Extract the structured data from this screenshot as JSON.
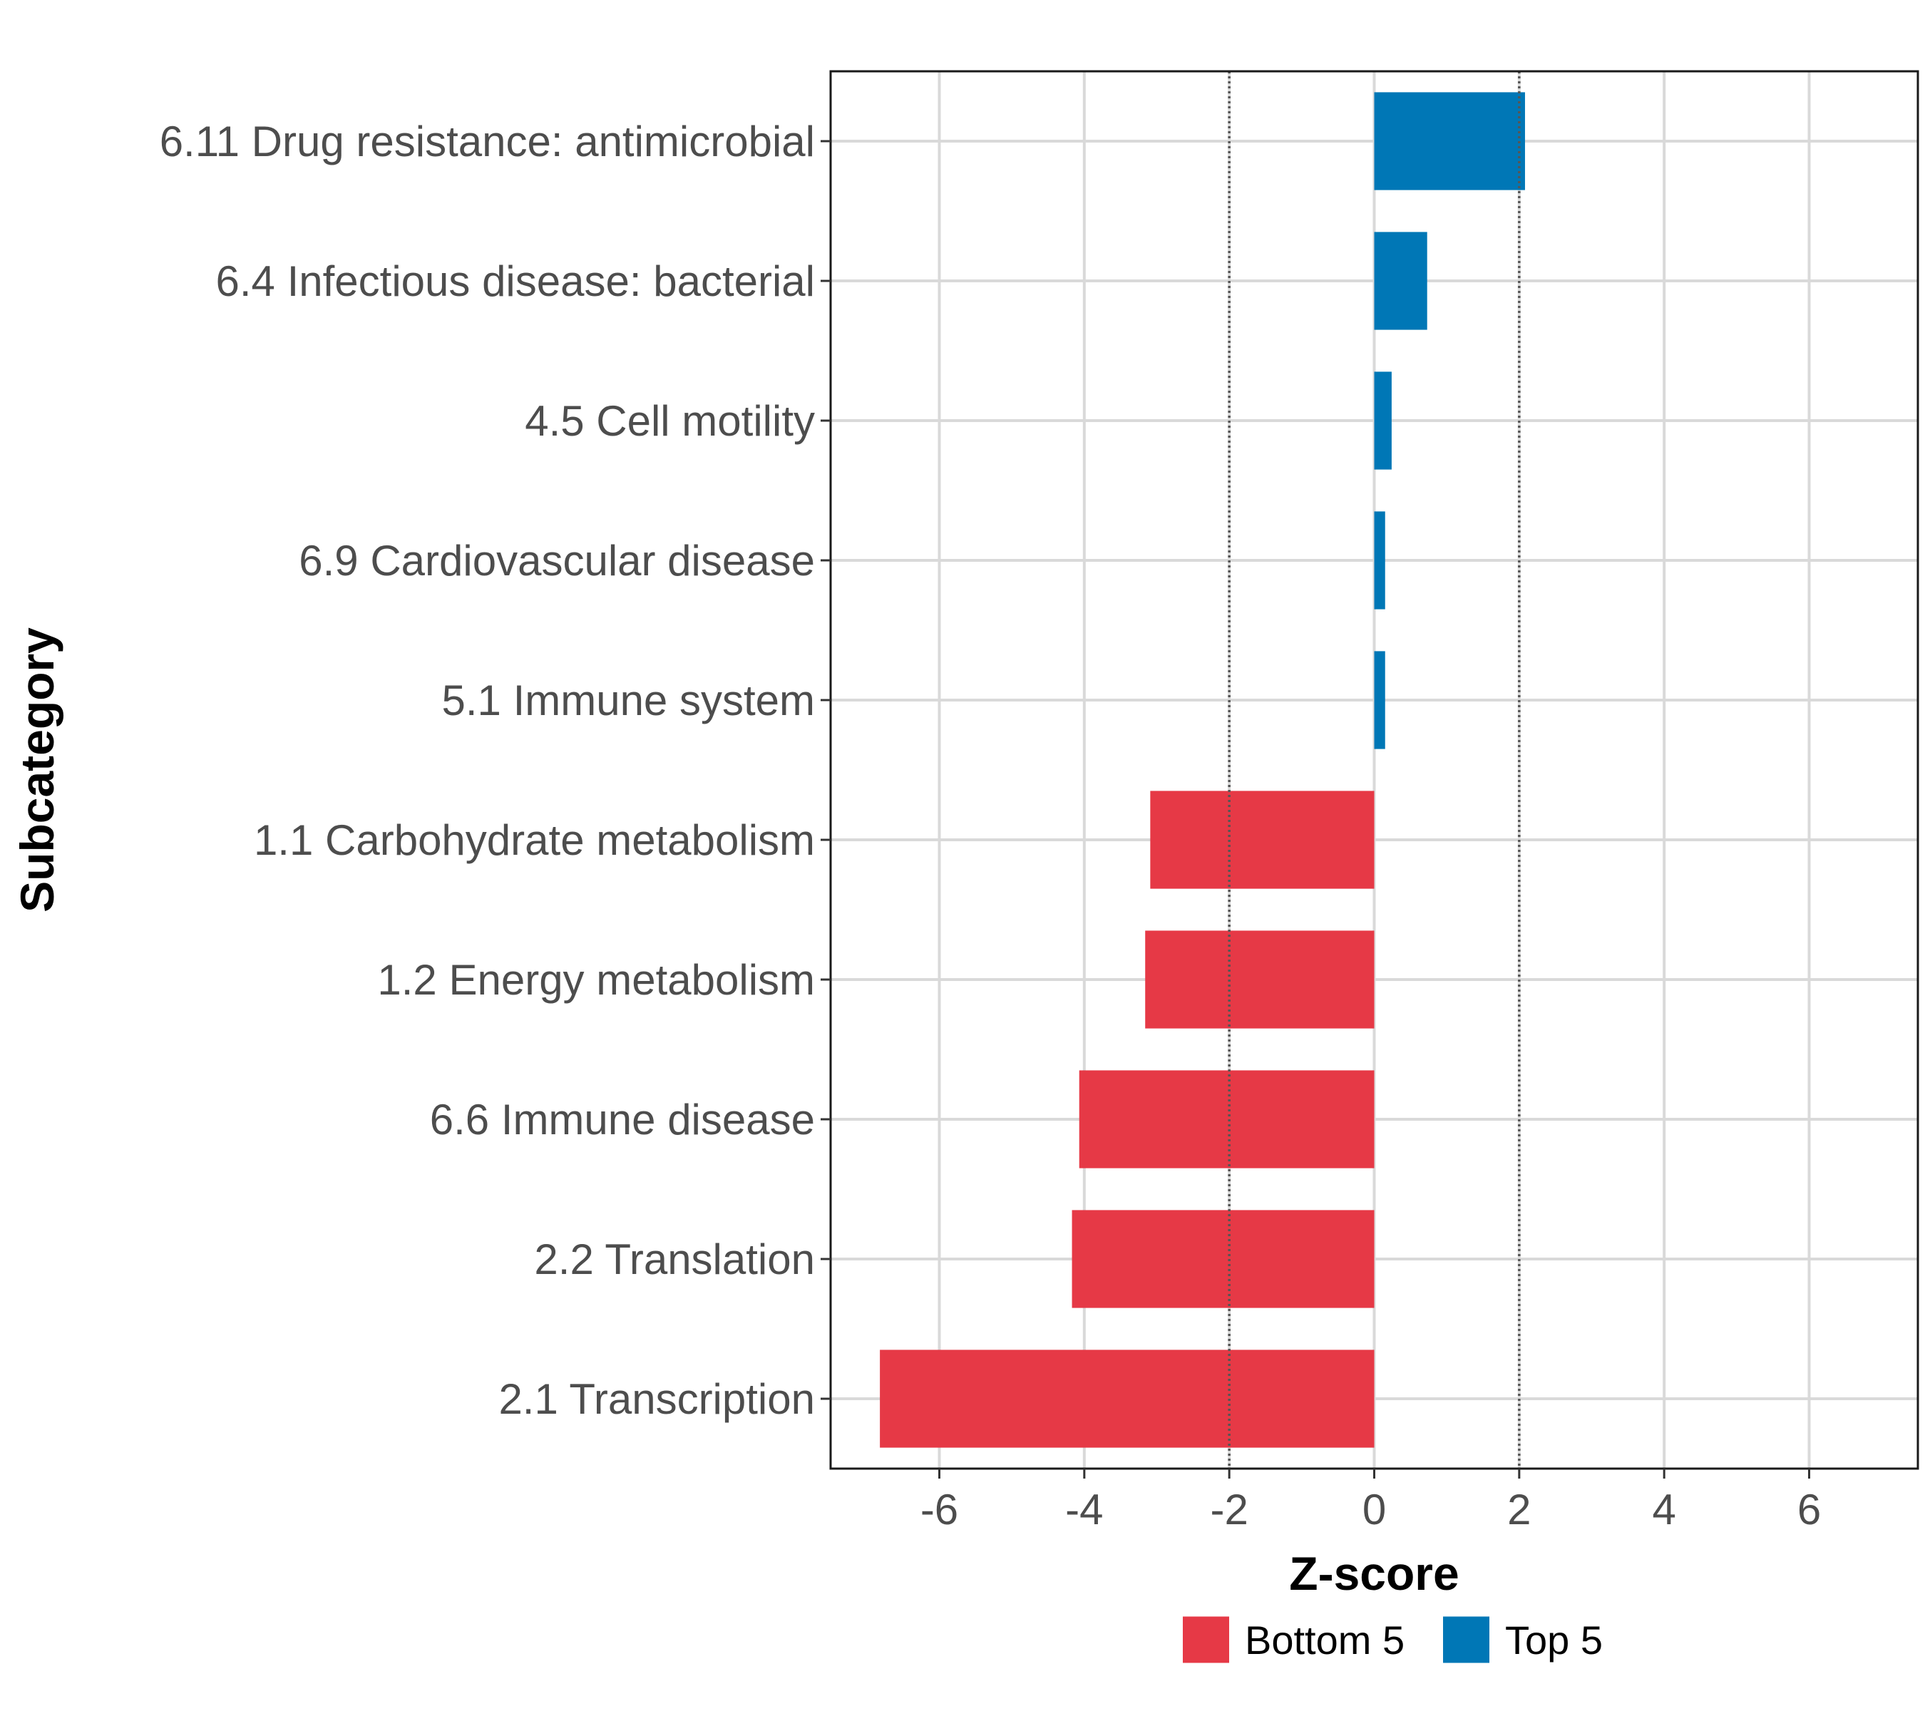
{
  "chart_data": {
    "type": "bar",
    "orientation": "horizontal",
    "title": "",
    "xlabel": "Z-score",
    "ylabel": "Subcategory",
    "xlim": [
      -7.5,
      7.5
    ],
    "xticks": [
      -6,
      -4,
      -2,
      0,
      2,
      4,
      6
    ],
    "xtick_labels": [
      "-6",
      "-4",
      "-2",
      "0",
      "2",
      "4",
      "6"
    ],
    "reference_lines": [
      -2,
      2
    ],
    "grid": true,
    "categories": [
      "6.11 Drug resistance: antimicrobial",
      "6.4 Infectious disease: bacterial",
      "4.5 Cell motility",
      "6.9 Cardiovascular disease",
      "5.1 Immune system",
      "1.1 Carbohydrate metabolism",
      "1.2 Energy metabolism",
      "6.6 Immune disease",
      "2.2 Translation",
      "2.1 Transcription"
    ],
    "values": [
      2.08,
      0.73,
      0.24,
      0.15,
      0.15,
      -3.09,
      -3.16,
      -4.07,
      -4.17,
      -6.82
    ],
    "groups": [
      "Top 5",
      "Top 5",
      "Top 5",
      "Top 5",
      "Top 5",
      "Bottom 5",
      "Bottom 5",
      "Bottom 5",
      "Bottom 5",
      "Bottom 5"
    ],
    "legend": {
      "position": "bottom",
      "entries": [
        {
          "label": "Bottom 5",
          "color": "#E63946"
        },
        {
          "label": "Top 5",
          "color": "#0077B6"
        }
      ]
    }
  }
}
